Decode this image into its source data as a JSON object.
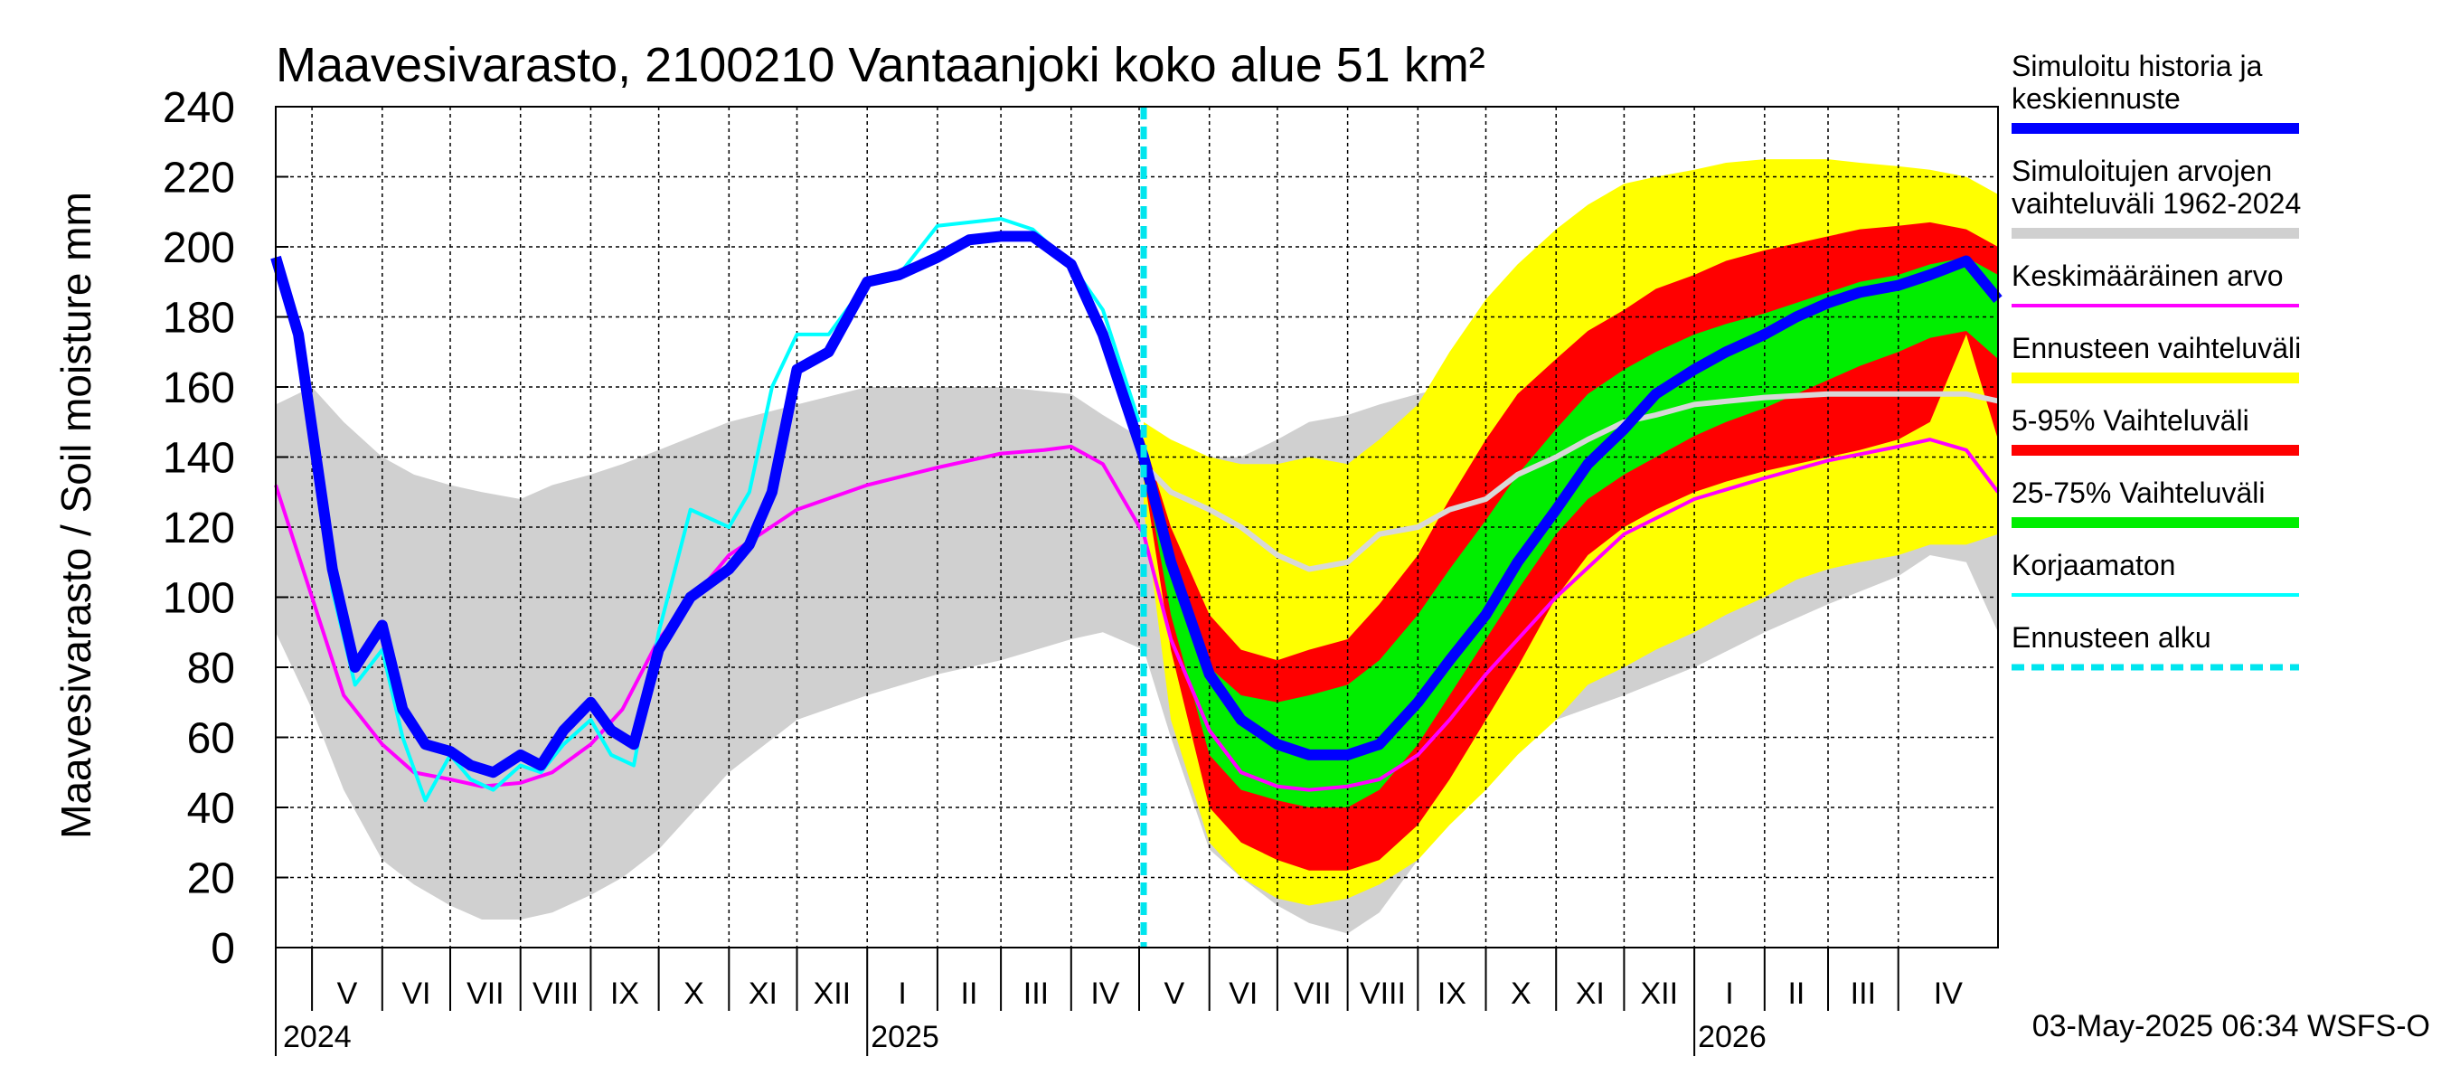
{
  "chart_data": {
    "type": "area",
    "title": "Maavesivarasto, 2100210 Vantaanjoki koko alue 51 km²",
    "ylabel": "Maavesivarasto / Soil moisture   mm",
    "xlabel": "",
    "ylim": [
      0,
      240
    ],
    "yticks": [
      0,
      20,
      40,
      60,
      80,
      100,
      120,
      140,
      160,
      180,
      200,
      220,
      240
    ],
    "x_range": [
      "2024-04-15",
      "2026-05-15"
    ],
    "grid": true,
    "legend_position": "right",
    "forecast_start": "2025-05-03",
    "timestamp": "03-May-2025 06:34 WSFS-O",
    "months": [
      {
        "label": "V",
        "start": "2024-05-01"
      },
      {
        "label": "VI",
        "start": "2024-06-01"
      },
      {
        "label": "VII",
        "start": "2024-07-01"
      },
      {
        "label": "VIII",
        "start": "2024-08-01"
      },
      {
        "label": "IX",
        "start": "2024-09-01"
      },
      {
        "label": "X",
        "start": "2024-10-01"
      },
      {
        "label": "XI",
        "start": "2024-11-01"
      },
      {
        "label": "XII",
        "start": "2024-12-01"
      },
      {
        "label": "I",
        "start": "2025-01-01"
      },
      {
        "label": "II",
        "start": "2025-02-01"
      },
      {
        "label": "III",
        "start": "2025-03-01"
      },
      {
        "label": "IV",
        "start": "2025-04-01"
      },
      {
        "label": "V",
        "start": "2025-05-01"
      },
      {
        "label": "VI",
        "start": "2025-06-01"
      },
      {
        "label": "VII",
        "start": "2025-07-01"
      },
      {
        "label": "VIII",
        "start": "2025-08-01"
      },
      {
        "label": "IX",
        "start": "2025-09-01"
      },
      {
        "label": "X",
        "start": "2025-10-01"
      },
      {
        "label": "XI",
        "start": "2025-11-01"
      },
      {
        "label": "XII",
        "start": "2025-12-01"
      },
      {
        "label": "I",
        "start": "2026-01-01"
      },
      {
        "label": "II",
        "start": "2026-02-01"
      },
      {
        "label": "III",
        "start": "2026-03-01"
      },
      {
        "label": "IV",
        "start": "2026-04-01"
      }
    ],
    "years": [
      {
        "label": "2024",
        "date": "2024-04-15"
      },
      {
        "label": "2025",
        "date": "2025-01-01"
      },
      {
        "label": "2026",
        "date": "2026-01-01"
      }
    ],
    "legend": [
      {
        "label": "Simuloitu historia ja keskiennuste",
        "color": "#0000ff",
        "style": "thick"
      },
      {
        "label": "Simuloitujen arvojen vaihteluväli 1962-2024",
        "color": "#d0d0d0",
        "style": "thick"
      },
      {
        "label": "Keskimääräinen arvo",
        "color": "#ff00ff",
        "style": "line"
      },
      {
        "label": "Ennusteen vaihteluväli",
        "color": "#ffff00",
        "style": "thick"
      },
      {
        "label": "5-95% Vaihteluväli",
        "color": "#ff0000",
        "style": "thick"
      },
      {
        "label": "25-75% Vaihteluväli",
        "color": "#00ee00",
        "style": "thick"
      },
      {
        "label": "Korjaamaton",
        "color": "#00ffff",
        "style": "line"
      },
      {
        "label": "Ennusteen alku",
        "color": "#00e5ee",
        "style": "dashed"
      }
    ],
    "series": [
      {
        "name": "Simuloitujen arvojen vaihteluväli 1962-2024",
        "kind": "band",
        "color": "#d0d0d0",
        "x": [
          "2024-04-15",
          "2024-05-01",
          "2024-05-15",
          "2024-06-01",
          "2024-06-15",
          "2024-07-01",
          "2024-07-15",
          "2024-08-01",
          "2024-08-15",
          "2024-09-01",
          "2024-09-15",
          "2024-10-01",
          "2024-11-01",
          "2024-12-01",
          "2025-01-01",
          "2025-02-01",
          "2025-03-01",
          "2025-04-01",
          "2025-04-15",
          "2025-05-03",
          "2025-05-15",
          "2025-06-01",
          "2025-06-15",
          "2025-07-01",
          "2025-07-15",
          "2025-08-01",
          "2025-08-15",
          "2025-09-01",
          "2025-09-15",
          "2025-10-01",
          "2025-11-01",
          "2025-12-01",
          "2026-01-01",
          "2026-02-01",
          "2026-03-01",
          "2026-04-01",
          "2026-04-15",
          "2026-05-01",
          "2026-05-15"
        ],
        "upper": [
          155,
          160,
          150,
          140,
          135,
          132,
          130,
          128,
          132,
          135,
          138,
          142,
          150,
          155,
          160,
          160,
          160,
          158,
          152,
          145,
          140,
          140,
          140,
          145,
          150,
          152,
          155,
          158,
          160,
          160,
          160,
          160,
          160,
          160,
          160,
          160,
          160,
          160,
          160
        ],
        "lower": [
          90,
          68,
          45,
          25,
          18,
          12,
          8,
          8,
          10,
          15,
          20,
          28,
          50,
          65,
          72,
          78,
          82,
          88,
          90,
          85,
          60,
          28,
          20,
          12,
          7,
          4,
          10,
          25,
          40,
          55,
          65,
          72,
          80,
          90,
          98,
          106,
          112,
          110,
          90
        ]
      },
      {
        "name": "Ennusteen vaihteluväli",
        "kind": "band",
        "color": "#ffff00",
        "x": [
          "2025-05-03",
          "2025-05-15",
          "2025-06-01",
          "2025-06-15",
          "2025-07-01",
          "2025-07-15",
          "2025-08-01",
          "2025-08-15",
          "2025-09-01",
          "2025-09-15",
          "2025-10-01",
          "2025-10-15",
          "2025-11-01",
          "2025-11-15",
          "2025-12-01",
          "2025-12-15",
          "2026-01-01",
          "2026-01-15",
          "2026-02-01",
          "2026-02-15",
          "2026-03-01",
          "2026-03-15",
          "2026-04-01",
          "2026-04-15",
          "2026-05-01",
          "2026-05-15"
        ],
        "upper": [
          150,
          145,
          140,
          138,
          138,
          140,
          138,
          145,
          155,
          170,
          185,
          195,
          205,
          212,
          218,
          220,
          222,
          224,
          225,
          225,
          225,
          224,
          223,
          222,
          220,
          215
        ],
        "lower": [
          125,
          65,
          30,
          20,
          14,
          12,
          14,
          18,
          25,
          35,
          45,
          55,
          65,
          75,
          80,
          85,
          90,
          95,
          100,
          105,
          108,
          110,
          112,
          115,
          115,
          118
        ]
      },
      {
        "name": "5-95% Vaihteluväli",
        "kind": "band",
        "color": "#ff0000",
        "x": [
          "2025-05-03",
          "2025-05-15",
          "2025-06-01",
          "2025-06-15",
          "2025-07-01",
          "2025-07-15",
          "2025-08-01",
          "2025-08-15",
          "2025-09-01",
          "2025-09-15",
          "2025-10-01",
          "2025-10-15",
          "2025-11-01",
          "2025-11-15",
          "2025-12-01",
          "2025-12-15",
          "2026-01-01",
          "2026-01-15",
          "2026-02-01",
          "2026-02-15",
          "2026-03-01",
          "2026-03-15",
          "2026-04-01",
          "2026-04-15",
          "2026-05-01",
          "2026-05-15"
        ],
        "upper": [
          145,
          120,
          95,
          85,
          82,
          85,
          88,
          98,
          112,
          128,
          145,
          158,
          168,
          176,
          182,
          188,
          192,
          196,
          199,
          201,
          203,
          205,
          206,
          207,
          205,
          200
        ],
        "lower": [
          135,
          85,
          40,
          30,
          25,
          22,
          22,
          25,
          35,
          48,
          65,
          80,
          100,
          112,
          120,
          125,
          130,
          133,
          136,
          138,
          140,
          142,
          145,
          150,
          175,
          145
        ]
      },
      {
        "name": "25-75% Vaihteluväli",
        "kind": "band",
        "color": "#00ee00",
        "x": [
          "2025-05-03",
          "2025-05-15",
          "2025-06-01",
          "2025-06-15",
          "2025-07-01",
          "2025-07-15",
          "2025-08-01",
          "2025-08-15",
          "2025-09-01",
          "2025-09-15",
          "2025-10-01",
          "2025-10-15",
          "2025-11-01",
          "2025-11-15",
          "2025-12-01",
          "2025-12-15",
          "2026-01-01",
          "2026-01-15",
          "2026-02-01",
          "2026-02-15",
          "2026-03-01",
          "2026-03-15",
          "2026-04-01",
          "2026-04-15",
          "2026-05-01",
          "2026-05-15"
        ],
        "upper": [
          142,
          108,
          80,
          72,
          70,
          72,
          75,
          82,
          95,
          108,
          122,
          135,
          148,
          158,
          165,
          170,
          175,
          178,
          181,
          184,
          187,
          190,
          192,
          195,
          197,
          192
        ],
        "lower": [
          138,
          95,
          55,
          45,
          42,
          40,
          40,
          45,
          58,
          72,
          88,
          102,
          118,
          128,
          135,
          140,
          146,
          150,
          154,
          158,
          162,
          166,
          170,
          174,
          176,
          168
        ]
      },
      {
        "name": "Keskimääräinen arvo",
        "kind": "line",
        "color": "#ff00ff",
        "x": [
          "2024-04-15",
          "2024-05-01",
          "2024-05-15",
          "2024-06-01",
          "2024-06-15",
          "2024-07-01",
          "2024-07-15",
          "2024-08-01",
          "2024-08-15",
          "2024-09-01",
          "2024-09-15",
          "2024-10-01",
          "2024-11-01",
          "2024-12-01",
          "2025-01-01",
          "2025-02-01",
          "2025-03-01",
          "2025-03-20",
          "2025-04-01",
          "2025-04-15",
          "2025-05-03",
          "2025-05-15",
          "2025-06-01",
          "2025-06-15",
          "2025-07-01",
          "2025-07-15",
          "2025-08-01",
          "2025-08-15",
          "2025-09-01",
          "2025-09-15",
          "2025-10-01",
          "2025-11-01",
          "2025-12-01",
          "2026-01-01",
          "2026-02-01",
          "2026-03-01",
          "2026-04-01",
          "2026-04-15",
          "2026-05-01",
          "2026-05-15"
        ],
        "y": [
          132,
          100,
          72,
          58,
          50,
          48,
          46,
          47,
          50,
          58,
          68,
          88,
          112,
          125,
          132,
          137,
          141,
          142,
          143,
          138,
          118,
          88,
          62,
          50,
          46,
          45,
          46,
          48,
          55,
          65,
          78,
          100,
          118,
          128,
          134,
          139,
          143,
          145,
          142,
          130
        ]
      },
      {
        "name": "Simuloitu historia ja keskiennuste",
        "kind": "line",
        "color": "#0000ff",
        "x": [
          "2024-04-15",
          "2024-04-25",
          "2024-05-10",
          "2024-05-20",
          "2024-06-01",
          "2024-06-10",
          "2024-06-20",
          "2024-07-01",
          "2024-07-10",
          "2024-07-20",
          "2024-08-01",
          "2024-08-10",
          "2024-08-20",
          "2024-09-01",
          "2024-09-10",
          "2024-09-20",
          "2024-10-01",
          "2024-10-15",
          "2024-11-01",
          "2024-11-10",
          "2024-11-20",
          "2024-12-01",
          "2024-12-15",
          "2025-01-01",
          "2025-01-15",
          "2025-02-01",
          "2025-02-15",
          "2025-03-01",
          "2025-03-15",
          "2025-04-01",
          "2025-04-15",
          "2025-05-03",
          "2025-05-15",
          "2025-06-01",
          "2025-06-15",
          "2025-07-01",
          "2025-07-15",
          "2025-08-01",
          "2025-08-15",
          "2025-09-01",
          "2025-09-15",
          "2025-10-01",
          "2025-10-15",
          "2025-11-01",
          "2025-11-15",
          "2025-12-01",
          "2025-12-15",
          "2026-01-01",
          "2026-01-15",
          "2026-02-01",
          "2026-02-15",
          "2026-03-01",
          "2026-03-15",
          "2026-04-01",
          "2026-04-15",
          "2026-05-01",
          "2026-05-15"
        ],
        "y": [
          197,
          175,
          108,
          80,
          92,
          68,
          58,
          56,
          52,
          50,
          55,
          52,
          62,
          70,
          62,
          58,
          85,
          100,
          108,
          115,
          130,
          165,
          170,
          190,
          192,
          197,
          202,
          203,
          203,
          195,
          175,
          140,
          110,
          78,
          65,
          58,
          55,
          55,
          58,
          70,
          82,
          95,
          110,
          125,
          138,
          148,
          158,
          165,
          170,
          175,
          180,
          184,
          187,
          189,
          192,
          196,
          185
        ]
      },
      {
        "name": "Korjaamaton",
        "kind": "line",
        "color": "#00ffff",
        "x": [
          "2024-04-15",
          "2024-04-25",
          "2024-05-10",
          "2024-05-20",
          "2024-06-01",
          "2024-06-10",
          "2024-06-20",
          "2024-07-01",
          "2024-07-10",
          "2024-07-20",
          "2024-08-01",
          "2024-08-10",
          "2024-08-20",
          "2024-09-01",
          "2024-09-10",
          "2024-09-20",
          "2024-10-01",
          "2024-10-15",
          "2024-11-01",
          "2024-11-10",
          "2024-11-20",
          "2024-12-01",
          "2024-12-15",
          "2025-01-01",
          "2025-01-15",
          "2025-02-01",
          "2025-02-15",
          "2025-03-01",
          "2025-03-15",
          "2025-04-01",
          "2025-04-15",
          "2025-05-01"
        ],
        "y": [
          197,
          172,
          102,
          75,
          85,
          60,
          42,
          55,
          48,
          45,
          52,
          50,
          58,
          65,
          55,
          52,
          90,
          125,
          120,
          130,
          160,
          175,
          175,
          190,
          192,
          206,
          207,
          208,
          205,
          195,
          182,
          150
        ]
      },
      {
        "name": "Simuloitujen arvojen vaihteluväli 1962-2024 (keskiarvo ennuste)",
        "kind": "line",
        "color": "#d8d8d8",
        "x": [
          "2025-05-03",
          "2025-05-15",
          "2025-06-01",
          "2025-06-15",
          "2025-07-01",
          "2025-07-15",
          "2025-08-01",
          "2025-08-15",
          "2025-09-01",
          "2025-09-15",
          "2025-10-01",
          "2025-10-15",
          "2025-11-01",
          "2025-11-15",
          "2025-12-01",
          "2025-12-15",
          "2026-01-01",
          "2026-02-01",
          "2026-03-01",
          "2026-04-01",
          "2026-04-15",
          "2026-05-01",
          "2026-05-15"
        ],
        "y": [
          138,
          130,
          125,
          120,
          112,
          108,
          110,
          118,
          120,
          125,
          128,
          135,
          140,
          145,
          150,
          152,
          155,
          157,
          158,
          158,
          158,
          158,
          156
        ]
      }
    ]
  }
}
